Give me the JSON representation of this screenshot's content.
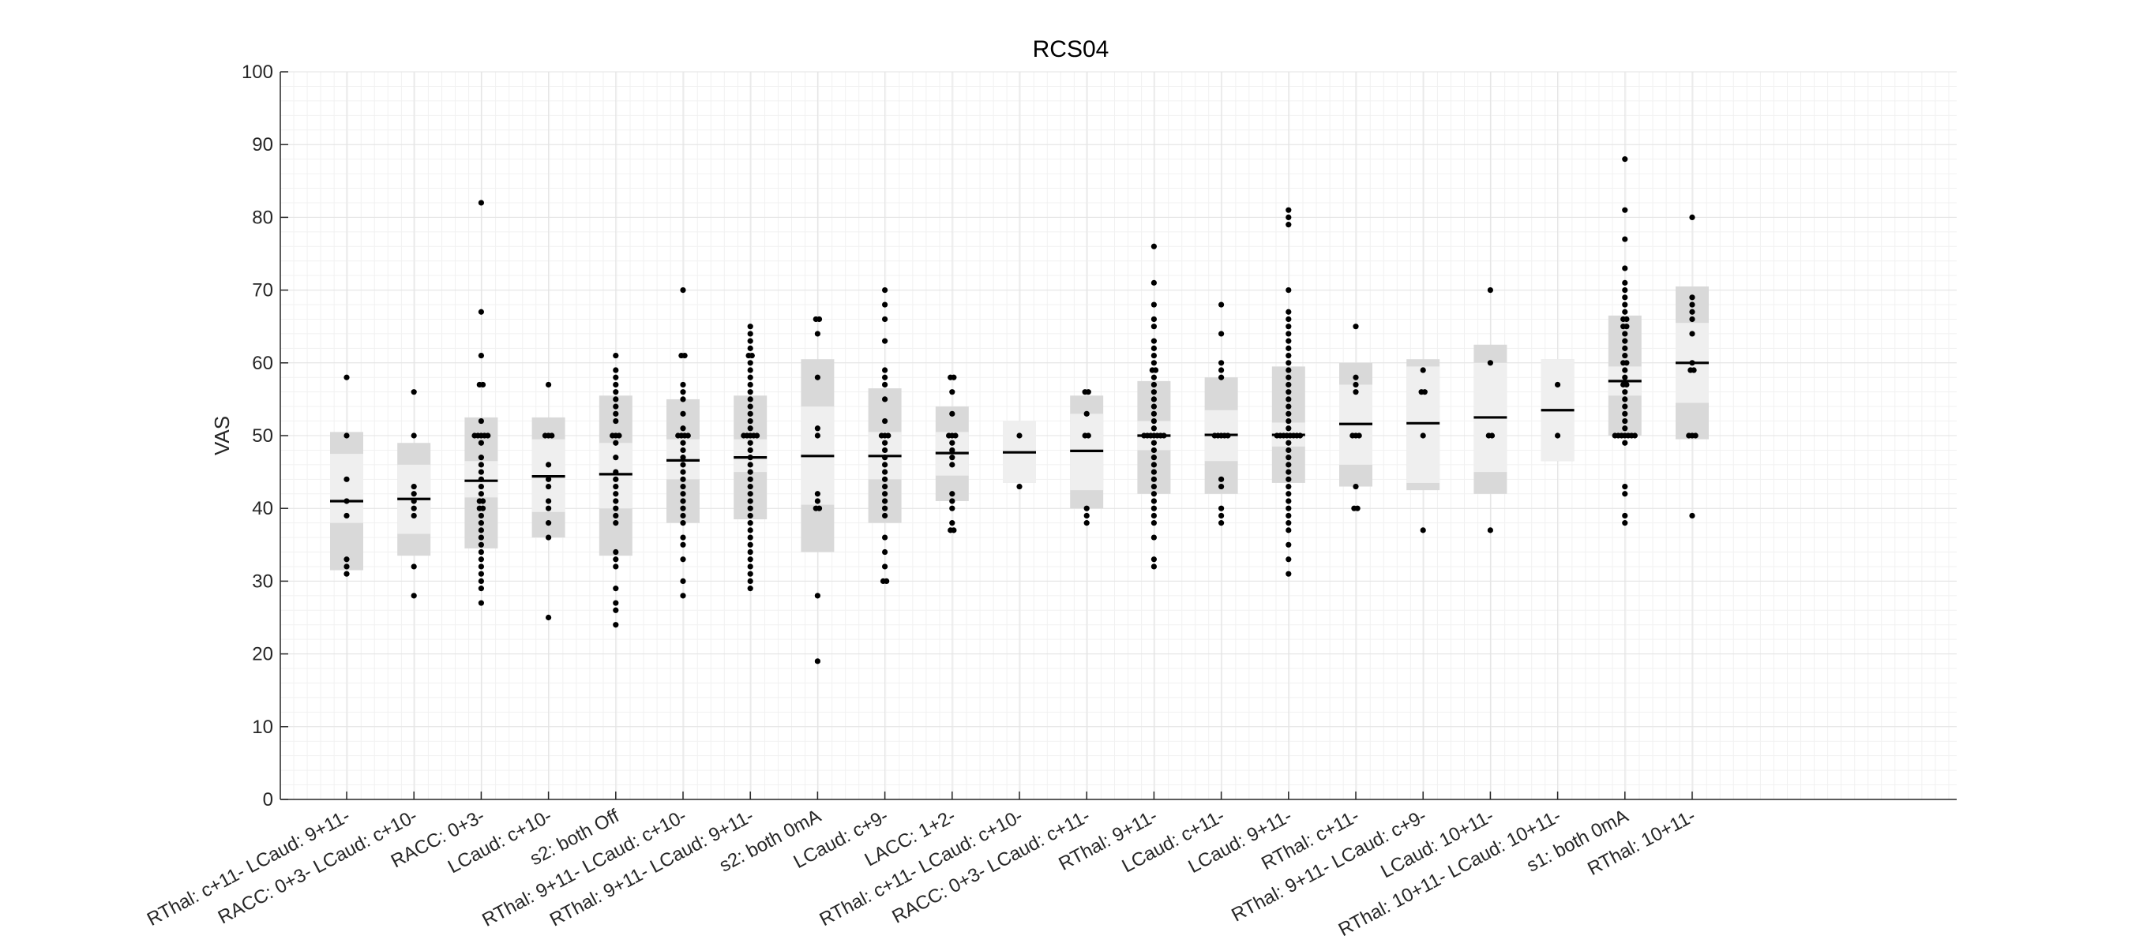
{
  "chart_data": {
    "type": "scatter",
    "title": "RCS04",
    "xlabel": "",
    "ylabel": "VAS",
    "ylim": [
      0,
      100
    ],
    "yticks": [
      0,
      10,
      20,
      30,
      40,
      50,
      60,
      70,
      80,
      90,
      100
    ],
    "grid": true,
    "categories": [
      "RThal: c+11- LCaud: 9+11-",
      "RACC: 0+3- LCaud: c+10-",
      "RACC: 0+3-",
      "LCaud: c+10-",
      "s2: both Off",
      "RThal: 9+11- LCaud: c+10-",
      "RThal: 9+11- LCaud: 9+11-",
      "s2: both 0mA",
      "LCaud: c+9-",
      "LACC: 1+2-",
      "RThal: c+11- LCaud: c+10-",
      "RACC: 0+3- LCaud: c+11-",
      "RThal: 9+11-",
      "LCaud: c+11-",
      "LCaud: 9+11-",
      "RThal: c+11-",
      "RThal: 9+11- LCaud: c+9-",
      "LCaud: 10+11-",
      "RThal: 10+11- LCaud: 10+11-",
      "s1: both 0mA",
      "RThal: 10+11-"
    ],
    "groups": [
      {
        "mean": 41.0,
        "ci": [
          38.0,
          47.5
        ],
        "sd": [
          31.5,
          50.5
        ],
        "points": [
          58,
          50,
          44,
          41,
          39,
          33,
          32,
          31
        ]
      },
      {
        "mean": 41.3,
        "ci": [
          36.5,
          46.0
        ],
        "sd": [
          33.5,
          49.0
        ],
        "points": [
          56,
          50,
          43,
          42,
          41,
          40,
          39,
          32,
          28
        ]
      },
      {
        "mean": 43.8,
        "ci": [
          41.5,
          46.5
        ],
        "sd": [
          34.5,
          52.5
        ],
        "points": [
          82,
          67,
          61,
          57,
          57,
          52,
          50,
          50,
          50,
          50,
          50,
          49,
          47,
          46,
          45,
          44,
          43,
          42,
          41,
          41,
          40,
          40,
          39,
          38,
          37,
          36,
          35,
          34,
          33,
          32,
          31,
          30,
          29,
          27
        ]
      },
      {
        "mean": 44.4,
        "ci": [
          39.5,
          49.5
        ],
        "sd": [
          36.0,
          52.5
        ],
        "points": [
          57,
          50,
          50,
          50,
          46,
          44,
          43,
          41,
          40,
          38,
          36,
          25
        ]
      },
      {
        "mean": 44.7,
        "ci": [
          40.0,
          49.0
        ],
        "sd": [
          33.5,
          55.5
        ],
        "points": [
          61,
          59,
          58,
          57,
          56,
          55,
          54,
          53,
          52,
          50,
          50,
          50,
          49,
          47,
          45,
          44,
          43,
          42,
          41,
          40,
          39,
          38,
          34,
          33,
          32,
          29,
          27,
          26,
          24
        ]
      },
      {
        "mean": 46.6,
        "ci": [
          44.0,
          49.5
        ],
        "sd": [
          38.0,
          55.0
        ],
        "points": [
          70,
          61,
          61,
          57,
          56,
          55,
          53,
          51,
          50,
          50,
          50,
          50,
          49,
          48,
          47,
          46,
          45,
          44,
          43,
          42,
          41,
          40,
          39,
          38,
          36,
          35,
          33,
          30,
          28
        ]
      },
      {
        "mean": 47.0,
        "ci": [
          45.0,
          49.5
        ],
        "sd": [
          38.5,
          55.5
        ],
        "points": [
          65,
          64,
          63,
          62,
          61,
          61,
          60,
          59,
          58,
          57,
          56,
          55,
          54,
          53,
          52,
          51,
          50,
          50,
          50,
          50,
          50,
          49,
          48,
          47,
          46,
          45,
          44,
          43,
          42,
          41,
          40,
          39,
          38,
          37,
          36,
          35,
          34,
          33,
          32,
          31,
          30,
          29
        ]
      },
      {
        "mean": 47.2,
        "ci": [
          40.5,
          54.0
        ],
        "sd": [
          34.0,
          60.5
        ],
        "points": [
          66,
          66,
          64,
          58,
          51,
          50,
          42,
          41,
          40,
          40,
          28,
          19
        ]
      },
      {
        "mean": 47.2,
        "ci": [
          44.0,
          50.5
        ],
        "sd": [
          38.0,
          56.5
        ],
        "points": [
          70,
          68,
          66,
          63,
          59,
          58,
          57,
          55,
          52,
          50,
          50,
          50,
          49,
          48,
          47,
          46,
          45,
          44,
          43,
          42,
          41,
          40,
          39,
          36,
          34,
          32,
          30,
          30
        ]
      },
      {
        "mean": 47.6,
        "ci": [
          44.5,
          50.5
        ],
        "sd": [
          41.0,
          54.0
        ],
        "points": [
          58,
          58,
          56,
          53,
          50,
          50,
          50,
          49,
          48,
          47,
          46,
          42,
          41,
          40,
          38,
          37,
          37
        ]
      },
      {
        "mean": 47.7,
        "ci": [
          43.5,
          52.0
        ],
        "sd": [
          43.5,
          52.0
        ],
        "points": [
          50,
          43
        ]
      },
      {
        "mean": 47.9,
        "ci": [
          42.5,
          53.0
        ],
        "sd": [
          40.0,
          55.5
        ],
        "points": [
          56,
          56,
          53,
          50,
          50,
          40,
          39,
          38
        ]
      },
      {
        "mean": 50.0,
        "ci": [
          48.0,
          52.0
        ],
        "sd": [
          42.0,
          57.5
        ],
        "points": [
          76,
          71,
          68,
          66,
          65,
          63,
          62,
          61,
          60,
          59,
          59,
          58,
          57,
          56,
          55,
          54,
          53,
          52,
          51,
          50,
          50,
          50,
          50,
          50,
          50,
          50,
          49,
          48,
          47,
          46,
          45,
          44,
          43,
          42,
          41,
          40,
          39,
          38,
          36,
          33,
          32
        ]
      },
      {
        "mean": 50.1,
        "ci": [
          46.5,
          53.5
        ],
        "sd": [
          42.0,
          58.0
        ],
        "points": [
          68,
          64,
          60,
          59,
          58,
          50,
          50,
          50,
          50,
          50,
          44,
          43,
          40,
          39,
          38
        ]
      },
      {
        "mean": 50.1,
        "ci": [
          48.5,
          51.8
        ],
        "sd": [
          43.5,
          59.5
        ],
        "points": [
          81,
          80,
          79,
          70,
          67,
          66,
          65,
          64,
          63,
          62,
          61,
          60,
          59,
          58,
          57,
          56,
          55,
          54,
          53,
          52,
          51,
          50,
          50,
          50,
          50,
          50,
          50,
          50,
          50,
          49,
          48,
          47,
          46,
          45,
          44,
          43,
          42,
          41,
          40,
          39,
          38,
          37,
          35,
          33,
          31
        ]
      },
      {
        "mean": 51.6,
        "ci": [
          46.0,
          57.0
        ],
        "sd": [
          43.0,
          60.0
        ],
        "points": [
          65,
          58,
          57,
          56,
          50,
          50,
          50,
          43,
          40,
          40
        ]
      },
      {
        "mean": 51.7,
        "ci": [
          43.5,
          59.5
        ],
        "sd": [
          42.5,
          60.5
        ],
        "points": [
          59,
          56,
          56,
          50,
          37
        ]
      },
      {
        "mean": 52.5,
        "ci": [
          45.0,
          60.0
        ],
        "sd": [
          42.0,
          62.5
        ],
        "points": [
          70,
          60,
          50,
          50,
          37
        ]
      },
      {
        "mean": 53.5,
        "ci": [
          46.5,
          60.5
        ],
        "sd": [
          46.5,
          60.5
        ],
        "points": [
          57,
          50
        ]
      },
      {
        "mean": 57.5,
        "ci": [
          55.5,
          59.5
        ],
        "sd": [
          50.0,
          66.5
        ],
        "points": [
          88,
          81,
          77,
          73,
          71,
          70,
          69,
          68,
          67,
          66,
          66,
          65,
          65,
          64,
          63,
          62,
          61,
          60,
          60,
          59,
          58,
          57,
          57,
          56,
          55,
          54,
          53,
          52,
          51,
          50,
          50,
          50,
          50,
          50,
          50,
          50,
          49,
          43,
          42,
          39,
          38
        ]
      },
      {
        "mean": 60.0,
        "ci": [
          54.5,
          65.5
        ],
        "sd": [
          49.5,
          70.5
        ],
        "points": [
          80,
          69,
          68,
          67,
          66,
          64,
          60,
          59,
          59,
          50,
          50,
          50,
          39
        ]
      }
    ]
  }
}
